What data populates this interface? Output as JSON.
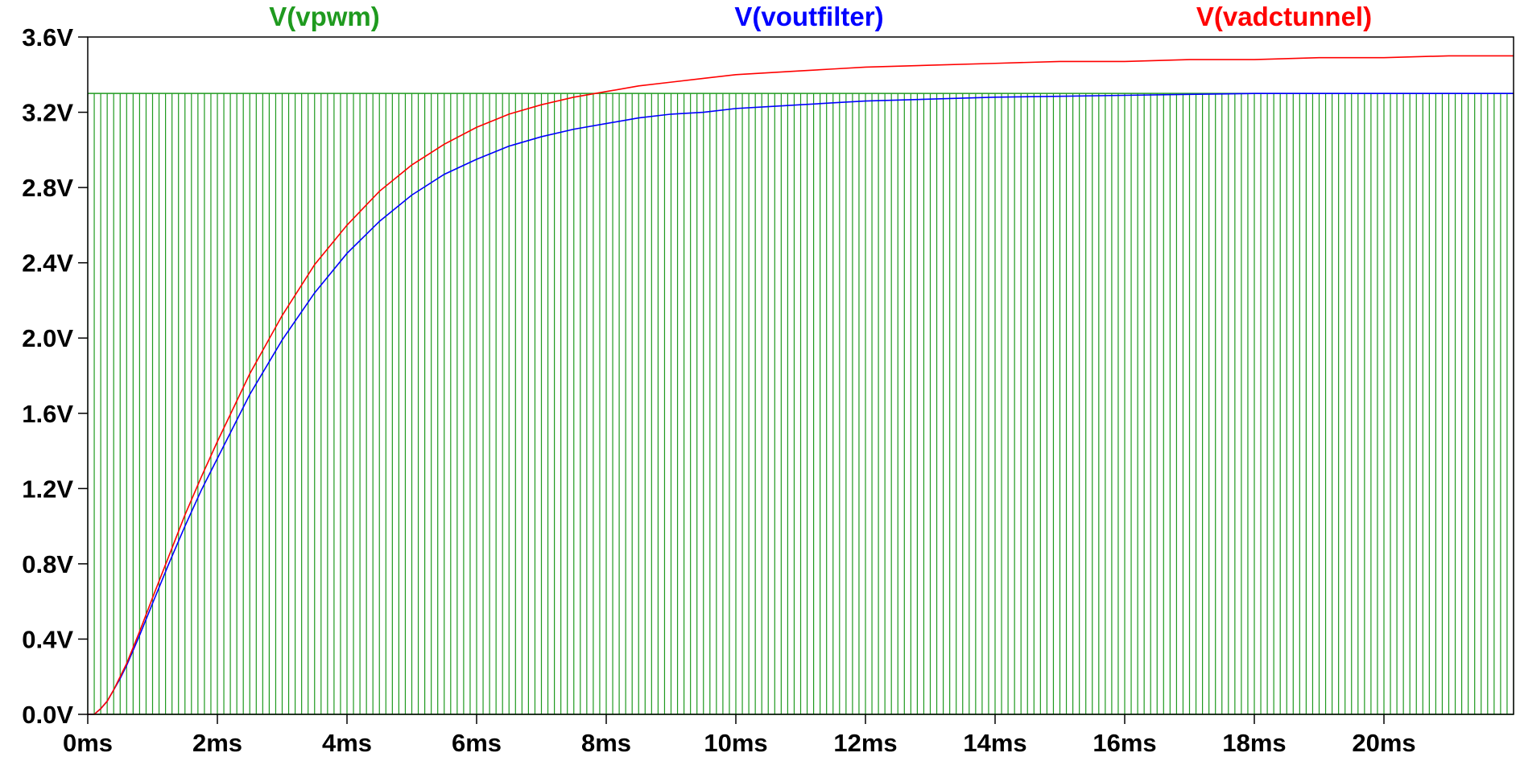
{
  "chart_data": {
    "type": "line",
    "x_unit": "ms",
    "y_unit": "V",
    "xlim": [
      0,
      22
    ],
    "ylim": [
      0,
      3.6
    ],
    "x_ticks": [
      0,
      2,
      4,
      6,
      8,
      10,
      12,
      14,
      16,
      18,
      20
    ],
    "x_tick_labels": [
      "0ms",
      "2ms",
      "4ms",
      "6ms",
      "8ms",
      "10ms",
      "12ms",
      "14ms",
      "16ms",
      "18ms",
      "20ms"
    ],
    "y_ticks": [
      0,
      0.4,
      0.8,
      1.2,
      1.6,
      2.0,
      2.4,
      2.8,
      3.2,
      3.6
    ],
    "y_tick_labels": [
      "0.0V",
      "0.4V",
      "0.8V",
      "1.2V",
      "1.6V",
      "2.0V",
      "2.4V",
      "2.8V",
      "3.2V",
      "3.6V"
    ],
    "grid": false,
    "legend": "top",
    "series": [
      {
        "name": "V(vpwm)",
        "color": "#1f9a1f",
        "style": "pwm",
        "low": 0,
        "high": 3.3,
        "period_ms": 0.1
      },
      {
        "name": "V(voutfilter)",
        "color": "#0000ff",
        "x": [
          0,
          0.1,
          0.2,
          0.3,
          0.4,
          0.5,
          0.6,
          0.8,
          1,
          1.25,
          1.5,
          1.75,
          2,
          2.5,
          3,
          3.5,
          4,
          4.5,
          5,
          5.5,
          6,
          6.5,
          7,
          7.5,
          8,
          8.5,
          9,
          9.5,
          10,
          10.5,
          11,
          11.5,
          12,
          13,
          14,
          15,
          16,
          17,
          18,
          19,
          20,
          21,
          22
        ],
        "y": [
          0.0,
          0.0,
          0.03,
          0.07,
          0.13,
          0.19,
          0.26,
          0.42,
          0.59,
          0.8,
          1.0,
          1.19,
          1.36,
          1.7,
          1.99,
          2.24,
          2.45,
          2.62,
          2.76,
          2.87,
          2.95,
          3.02,
          3.07,
          3.11,
          3.14,
          3.17,
          3.19,
          3.2,
          3.22,
          3.23,
          3.24,
          3.25,
          3.26,
          3.27,
          3.28,
          3.285,
          3.29,
          3.295,
          3.3,
          3.3,
          3.3,
          3.3,
          3.3
        ]
      },
      {
        "name": "V(vadctunnel)",
        "color": "#ff0000",
        "x": [
          0,
          0.1,
          0.2,
          0.3,
          0.4,
          0.5,
          0.6,
          0.8,
          1,
          1.25,
          1.5,
          1.75,
          2,
          2.5,
          3,
          3.5,
          4,
          4.5,
          5,
          5.5,
          6,
          6.5,
          7,
          7.5,
          8,
          8.5,
          9,
          9.5,
          10,
          10.5,
          11,
          11.5,
          12,
          13,
          14,
          15,
          16,
          17,
          18,
          19,
          20,
          21,
          22
        ],
        "y": [
          0.0,
          0.0,
          0.03,
          0.07,
          0.13,
          0.2,
          0.27,
          0.44,
          0.62,
          0.84,
          1.06,
          1.26,
          1.45,
          1.81,
          2.12,
          2.39,
          2.6,
          2.78,
          2.92,
          3.03,
          3.12,
          3.19,
          3.24,
          3.28,
          3.31,
          3.34,
          3.36,
          3.38,
          3.4,
          3.41,
          3.42,
          3.43,
          3.44,
          3.45,
          3.46,
          3.47,
          3.47,
          3.48,
          3.48,
          3.49,
          3.49,
          3.5,
          3.5
        ]
      }
    ]
  }
}
